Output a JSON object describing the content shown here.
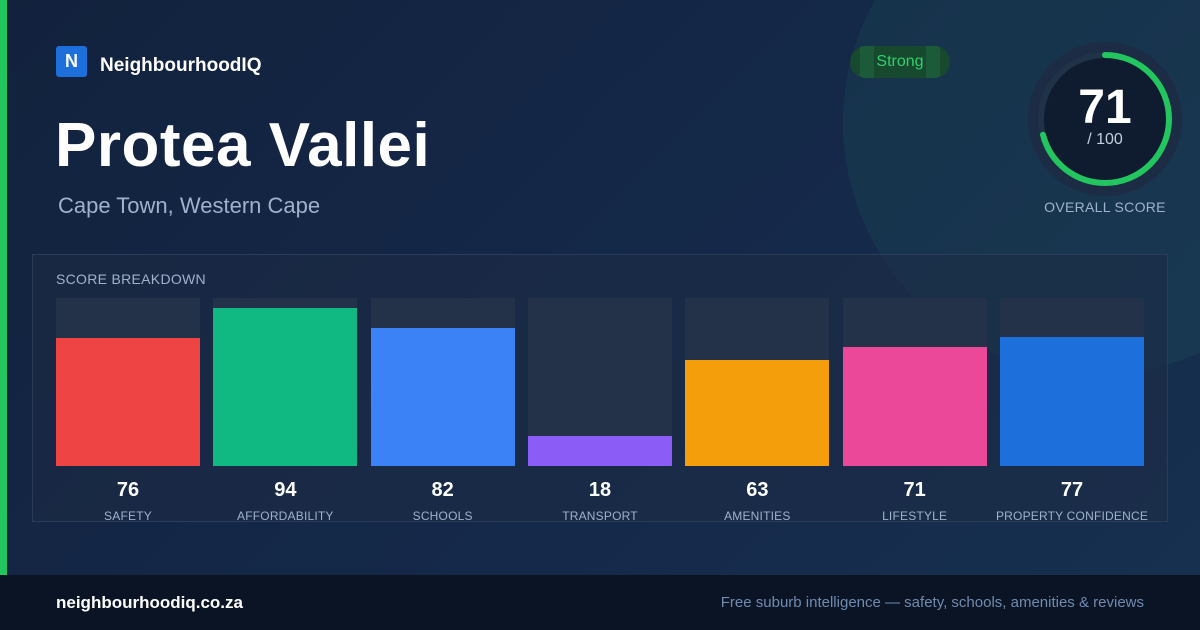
{
  "brand": {
    "logo_letter": "N",
    "name": "NeighbourhoodIQ",
    "logo_color": "#1d6fdc"
  },
  "suburb": {
    "name": "Protea Vallei",
    "location": "Cape Town, Western Cape"
  },
  "rating": {
    "label": "Strong",
    "color": "#22c55e"
  },
  "overall": {
    "score": "71",
    "max": "/ 100",
    "caption": "OVERALL SCORE",
    "fraction": 0.71
  },
  "breakdown": {
    "title": "SCORE BREAKDOWN",
    "max": 100,
    "items": [
      {
        "label": "SAFETY",
        "value": 76,
        "color": "#ef4444"
      },
      {
        "label": "AFFORDABILITY",
        "value": 94,
        "color": "#10b981"
      },
      {
        "label": "SCHOOLS",
        "value": 82,
        "color": "#3b82f6"
      },
      {
        "label": "TRANSPORT",
        "value": 18,
        "color": "#8b5cf6"
      },
      {
        "label": "AMENITIES",
        "value": 63,
        "color": "#f59e0b"
      },
      {
        "label": "LIFESTYLE",
        "value": 71,
        "color": "#ec4899"
      },
      {
        "label": "PROPERTY CONFIDENCE",
        "value": 77,
        "color": "#1d6fdc"
      }
    ]
  },
  "footer": {
    "domain": "neighbourhoodiq.co.za",
    "tagline": "Free suburb intelligence — safety, schools, amenities & reviews"
  }
}
